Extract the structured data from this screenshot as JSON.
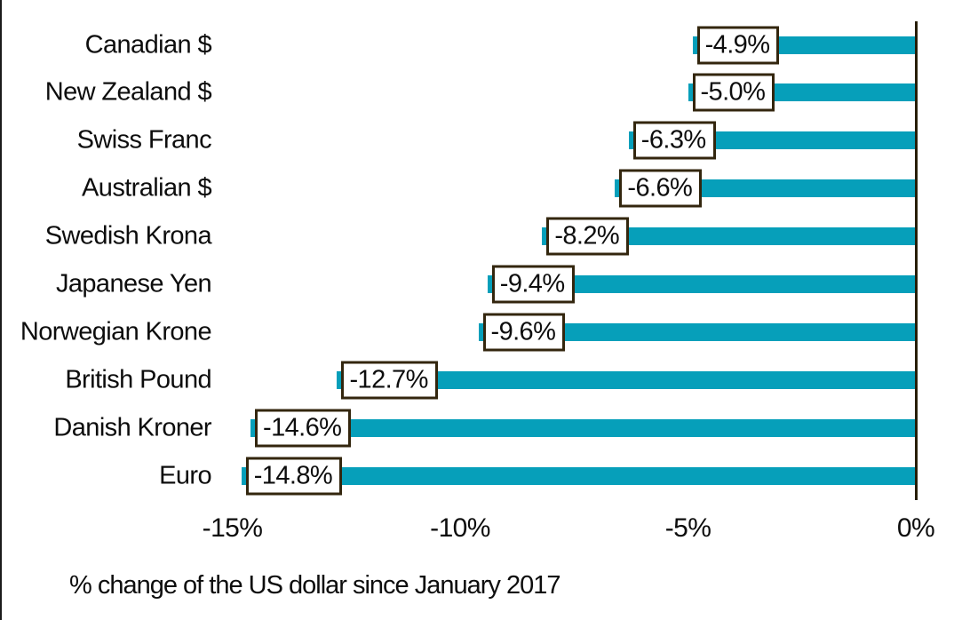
{
  "chart_data": {
    "type": "bar",
    "orientation": "horizontal",
    "title": "",
    "caption": "% change of the US dollar since January 2017",
    "categories": [
      "Canadian $",
      "New Zealand $",
      "Swiss Franc",
      "Australian $",
      "Swedish Krona",
      "Japanese Yen",
      "Norwegian Krone",
      "British Pound",
      "Danish Kroner",
      "Euro"
    ],
    "values": [
      -4.9,
      -5.0,
      -6.3,
      -6.6,
      -8.2,
      -9.4,
      -9.6,
      -12.7,
      -14.6,
      -14.8
    ],
    "data_labels": [
      "-4.9%",
      "-5.0%",
      "-6.3%",
      "-6.6%",
      "-8.2%",
      "-9.4%",
      "-9.6%",
      "-12.7%",
      "-14.6%",
      "-14.8%"
    ],
    "x_ticks": [
      "-15%",
      "-10%",
      "-5%",
      "0%"
    ],
    "x_tick_values": [
      -15,
      -10,
      -5,
      0
    ],
    "xlim": [
      -15.3,
      0
    ],
    "grid": false,
    "legend": false,
    "bar_color": "#069fba",
    "axis_line_color": "#271e06",
    "label_box_border_color": "#33260e",
    "label_box_fill": "#ffffff",
    "text_color": "#0d0d0d"
  }
}
